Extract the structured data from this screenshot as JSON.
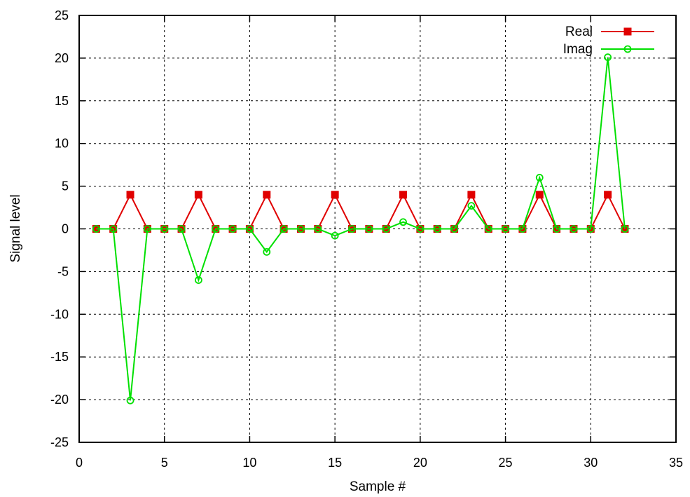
{
  "chart_data": {
    "type": "line",
    "title": "",
    "xlabel": "Sample #",
    "ylabel": "Signal level",
    "xlim": [
      0,
      35
    ],
    "ylim": [
      -25,
      25
    ],
    "xticks": [
      0,
      5,
      10,
      15,
      20,
      25,
      30,
      35
    ],
    "yticks": [
      -25,
      -20,
      -15,
      -10,
      -5,
      0,
      5,
      10,
      15,
      20,
      25
    ],
    "grid": true,
    "legend_position": "top-right",
    "x": [
      1,
      2,
      3,
      4,
      5,
      6,
      7,
      8,
      9,
      10,
      11,
      12,
      13,
      14,
      15,
      16,
      17,
      18,
      19,
      20,
      21,
      22,
      23,
      24,
      25,
      26,
      27,
      28,
      29,
      30,
      31,
      32
    ],
    "series": [
      {
        "name": "Real",
        "color": "#e00000",
        "marker": "filled-square",
        "values": [
          0,
          0,
          4,
          0,
          0,
          0,
          4,
          0,
          0,
          0,
          4,
          0,
          0,
          0,
          4,
          0,
          0,
          0,
          4,
          0,
          0,
          0,
          4,
          0,
          0,
          0,
          4,
          0,
          0,
          0,
          4,
          0
        ]
      },
      {
        "name": "Imag",
        "color": "#00e000",
        "marker": "open-circle",
        "values": [
          0,
          0,
          -20.1,
          0,
          0,
          0,
          -6,
          0,
          0,
          0,
          -2.7,
          0,
          0,
          0,
          -0.8,
          0,
          0,
          0,
          0.8,
          0,
          0,
          0,
          2.7,
          0,
          0,
          0,
          6,
          0,
          0,
          0,
          20.1,
          0
        ]
      }
    ]
  }
}
